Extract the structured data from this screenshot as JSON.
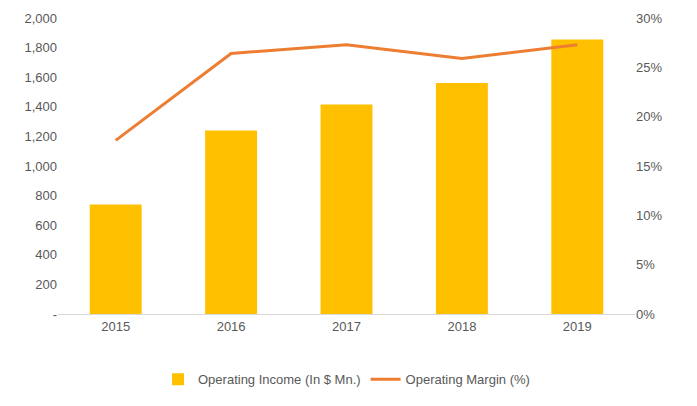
{
  "chart_data": {
    "type": "bar",
    "categories": [
      "2015",
      "2016",
      "2017",
      "2018",
      "2019"
    ],
    "series": [
      {
        "name": "Operating Income (In $ Mn.)",
        "type": "bar",
        "color": "#FFC000",
        "values": [
          740,
          1240,
          1415,
          1560,
          1855
        ]
      },
      {
        "name": "Operating Margin (%)",
        "type": "line",
        "color": "#ED7D31",
        "axis": "y2",
        "values": [
          17.6,
          26.4,
          27.3,
          25.9,
          27.3
        ]
      }
    ],
    "ylim": [
      0,
      2000
    ],
    "yticks": [
      {
        "value": 0,
        "label": "-"
      },
      200,
      400,
      600,
      800,
      {
        "value": 1000,
        "label": "1,000"
      },
      {
        "value": 1200,
        "label": "1,200"
      },
      {
        "value": 1400,
        "label": "1,400"
      },
      {
        "value": 1600,
        "label": "1,600"
      },
      {
        "value": 1800,
        "label": "1,800"
      },
      {
        "value": 2000,
        "label": "2,000"
      }
    ],
    "y2lim": [
      0,
      30
    ],
    "y2ticks": [
      {
        "value": 0,
        "label": "0%"
      },
      {
        "value": 5,
        "label": "5%"
      },
      {
        "value": 10,
        "label": "10%"
      },
      {
        "value": 15,
        "label": "15%"
      },
      {
        "value": 20,
        "label": "20%"
      },
      {
        "value": 25,
        "label": "25%"
      },
      {
        "value": 30,
        "label": "30%"
      }
    ],
    "grid": false,
    "legend": "bottom"
  }
}
